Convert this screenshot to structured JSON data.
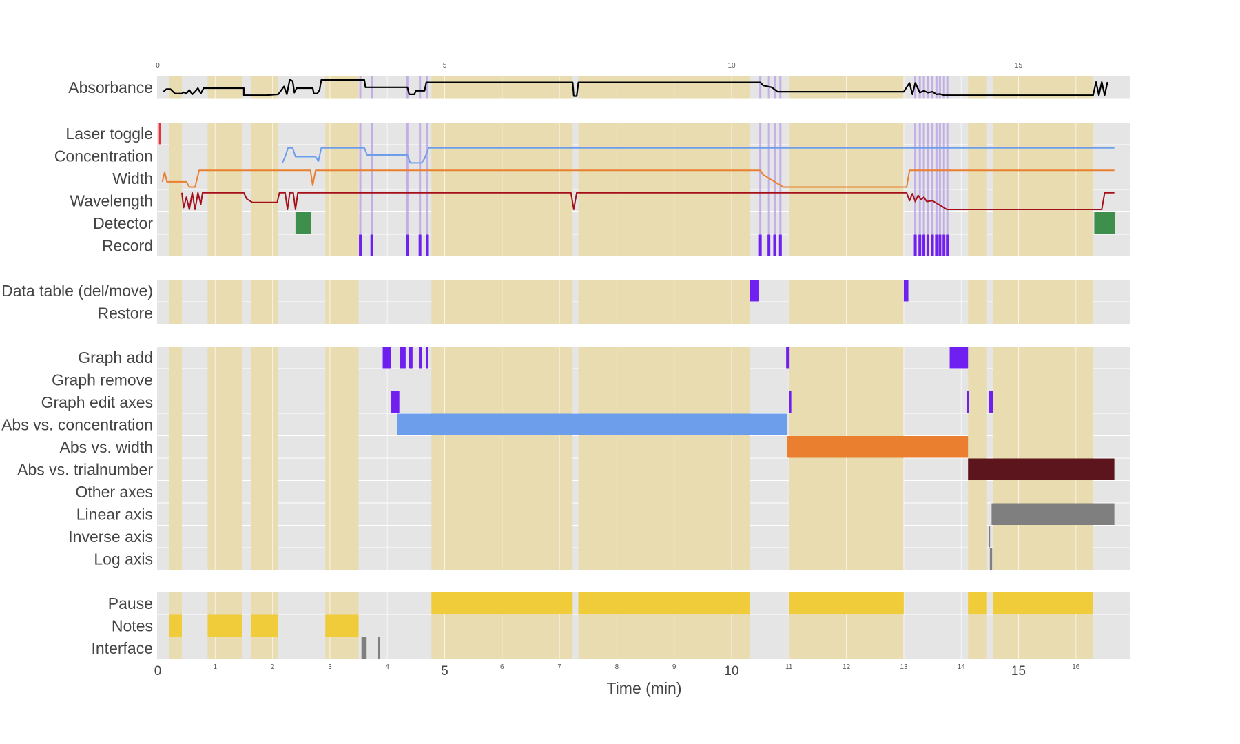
{
  "chart_data": {
    "type": "timeline",
    "xlabel": "Time (min)",
    "xlim": [
      0,
      17
    ],
    "grid": true,
    "top_ticks": [
      "0",
      "5",
      "10",
      "15"
    ],
    "bottom_major_ticks": [
      "0",
      "5",
      "10",
      "15"
    ],
    "bottom_minor_ticks": [
      "1",
      "2",
      "3",
      "4",
      "6",
      "7",
      "8",
      "9",
      "11",
      "12",
      "13",
      "14",
      "16"
    ],
    "colors": {
      "panel_bg": "#e5e5e5",
      "shade": "#e8dcb0",
      "black": "#000000",
      "red": "#e8303a",
      "blue": "#6d9eeb",
      "orange": "#e97f2f",
      "darkred": "#a50e1b",
      "green": "#3e8e4c",
      "purple": "#6f1ff0",
      "lavender": "#b9a1e6",
      "maroon": "#5c141d",
      "gray": "#7f7f7f",
      "yellow": "#f0cb3a"
    },
    "shaded_intervals": [
      [
        0.2,
        0.42
      ],
      [
        0.87,
        1.47
      ],
      [
        1.62,
        2.1
      ],
      [
        2.92,
        3.5
      ],
      [
        4.77,
        7.23
      ],
      [
        7.33,
        10.32
      ],
      [
        11.0,
        13.0
      ],
      [
        14.12,
        14.45
      ],
      [
        14.55,
        16.3
      ]
    ],
    "panels": [
      {
        "id": "absorbance",
        "rows": [
          "Absorbance"
        ]
      },
      {
        "id": "controls",
        "rows": [
          "Laser toggle",
          "Concentration",
          "Width",
          "Wavelength",
          "Detector",
          "Record"
        ]
      },
      {
        "id": "table",
        "rows": [
          "Data table (del/move)",
          "Restore"
        ]
      },
      {
        "id": "graph",
        "rows": [
          "Graph add",
          "Graph remove",
          "Graph edit axes",
          "Abs vs. concentration",
          "Abs vs. width",
          "Abs vs. trialnumber",
          "Other axes",
          "Linear axis",
          "Inverse axis",
          "Log axis"
        ]
      },
      {
        "id": "activity",
        "rows": [
          "Pause",
          "Notes",
          "Interface"
        ]
      }
    ],
    "record_times": [
      3.53,
      3.73,
      4.35,
      4.57,
      4.7,
      10.5,
      10.65,
      10.75,
      10.85,
      13.2,
      13.28,
      13.35,
      13.42,
      13.5,
      13.57,
      13.63,
      13.7,
      13.76
    ],
    "events": [
      {
        "row": "Laser toggle",
        "start": 0.02,
        "end": 0.06,
        "color": "red"
      },
      {
        "row": "Detector",
        "start": 2.4,
        "end": 2.67,
        "color": "green"
      },
      {
        "row": "Detector",
        "start": 16.32,
        "end": 16.68,
        "color": "green"
      },
      {
        "row": "Data table (del/move)",
        "start": 10.32,
        "end": 10.48,
        "color": "purple"
      },
      {
        "row": "Data table (del/move)",
        "start": 13.0,
        "end": 13.08,
        "color": "purple"
      },
      {
        "row": "Graph add",
        "start": 3.92,
        "end": 4.06,
        "color": "purple"
      },
      {
        "row": "Graph add",
        "start": 4.22,
        "end": 4.32,
        "color": "purple"
      },
      {
        "row": "Graph add",
        "start": 4.37,
        "end": 4.44,
        "color": "purple"
      },
      {
        "row": "Graph add",
        "start": 4.55,
        "end": 4.6,
        "color": "purple"
      },
      {
        "row": "Graph add",
        "start": 4.67,
        "end": 4.71,
        "color": "purple"
      },
      {
        "row": "Graph add",
        "start": 10.95,
        "end": 11.01,
        "color": "purple"
      },
      {
        "row": "Graph add",
        "start": 13.8,
        "end": 14.12,
        "color": "purple"
      },
      {
        "row": "Graph edit axes",
        "start": 4.07,
        "end": 4.21,
        "color": "purple"
      },
      {
        "row": "Graph edit axes",
        "start": 11.0,
        "end": 11.04,
        "color": "purple"
      },
      {
        "row": "Graph edit axes",
        "start": 14.1,
        "end": 14.13,
        "color": "purple"
      },
      {
        "row": "Graph edit axes",
        "start": 14.48,
        "end": 14.56,
        "color": "purple"
      },
      {
        "row": "Abs vs. concentration",
        "start": 4.17,
        "end": 10.97,
        "color": "blue"
      },
      {
        "row": "Abs vs. width",
        "start": 10.97,
        "end": 14.12,
        "color": "orange"
      },
      {
        "row": "Abs vs. trialnumber",
        "start": 14.12,
        "end": 16.67,
        "color": "maroon"
      },
      {
        "row": "Linear axis",
        "start": 14.53,
        "end": 16.67,
        "color": "gray"
      },
      {
        "row": "Inverse axis",
        "start": 14.48,
        "end": 14.5,
        "color": "gray"
      },
      {
        "row": "Log axis",
        "start": 14.5,
        "end": 14.54,
        "color": "gray"
      },
      {
        "row": "Pause",
        "start": 4.77,
        "end": 7.23,
        "color": "yellow"
      },
      {
        "row": "Pause",
        "start": 7.33,
        "end": 10.32,
        "color": "yellow"
      },
      {
        "row": "Pause",
        "start": 11.0,
        "end": 13.0,
        "color": "yellow"
      },
      {
        "row": "Pause",
        "start": 14.12,
        "end": 14.45,
        "color": "yellow"
      },
      {
        "row": "Pause",
        "start": 14.55,
        "end": 16.3,
        "color": "yellow"
      },
      {
        "row": "Notes",
        "start": 0.2,
        "end": 0.42,
        "color": "yellow"
      },
      {
        "row": "Notes",
        "start": 0.87,
        "end": 1.47,
        "color": "yellow"
      },
      {
        "row": "Notes",
        "start": 1.62,
        "end": 2.1,
        "color": "yellow"
      },
      {
        "row": "Notes",
        "start": 2.92,
        "end": 3.5,
        "color": "yellow"
      },
      {
        "row": "Interface",
        "start": 3.55,
        "end": 3.64,
        "color": "gray"
      },
      {
        "row": "Interface",
        "start": 3.83,
        "end": 3.87,
        "color": "gray"
      }
    ],
    "lines": [
      {
        "row": "Absorbance",
        "color": "black",
        "points": [
          [
            0.1,
            0.25
          ],
          [
            0.15,
            0.4
          ],
          [
            0.22,
            0.4
          ],
          [
            0.3,
            0.15
          ],
          [
            0.42,
            0.15
          ],
          [
            0.45,
            0.22
          ],
          [
            0.5,
            0.15
          ],
          [
            0.55,
            0.35
          ],
          [
            0.6,
            0.1
          ],
          [
            0.65,
            0.25
          ],
          [
            0.7,
            0.45
          ],
          [
            0.75,
            0.15
          ],
          [
            0.8,
            0.45
          ],
          [
            1.5,
            0.45
          ],
          [
            1.5,
            0.05
          ],
          [
            1.9,
            0.05
          ],
          [
            2.1,
            0.1
          ],
          [
            2.2,
            0.55
          ],
          [
            2.25,
            0.1
          ],
          [
            2.3,
            0.95
          ],
          [
            2.35,
            0.85
          ],
          [
            2.38,
            0.2
          ],
          [
            2.42,
            0.45
          ],
          [
            2.7,
            0.45
          ],
          [
            2.72,
            0.15
          ],
          [
            2.78,
            0.15
          ],
          [
            2.82,
            0.35
          ],
          [
            2.85,
            0.92
          ],
          [
            3.6,
            0.92
          ],
          [
            3.62,
            0.5
          ],
          [
            4.35,
            0.5
          ],
          [
            4.38,
            0.1
          ],
          [
            4.47,
            0.1
          ],
          [
            4.5,
            0.3
          ],
          [
            4.65,
            0.3
          ],
          [
            4.68,
            0.78
          ],
          [
            7.23,
            0.78
          ],
          [
            7.25,
            0.0
          ],
          [
            7.3,
            0.0
          ],
          [
            7.33,
            0.78
          ],
          [
            10.5,
            0.78
          ],
          [
            10.55,
            0.6
          ],
          [
            10.7,
            0.5
          ],
          [
            10.8,
            0.25
          ],
          [
            13.0,
            0.25
          ],
          [
            13.1,
            0.75
          ],
          [
            13.15,
            0.1
          ],
          [
            13.2,
            0.75
          ],
          [
            13.28,
            0.2
          ],
          [
            13.35,
            0.3
          ],
          [
            13.42,
            0.2
          ],
          [
            13.5,
            0.25
          ],
          [
            13.57,
            0.1
          ],
          [
            13.63,
            0.12
          ],
          [
            13.7,
            0.05
          ],
          [
            16.3,
            0.05
          ],
          [
            16.35,
            0.8
          ],
          [
            16.4,
            0.05
          ],
          [
            16.45,
            0.8
          ],
          [
            16.5,
            0.05
          ],
          [
            16.55,
            0.8
          ]
        ]
      },
      {
        "row": "Concentration",
        "color": "blue",
        "points": [
          [
            2.17,
            0.1
          ],
          [
            2.22,
            0.45
          ],
          [
            2.27,
            0.95
          ],
          [
            2.35,
            0.95
          ],
          [
            2.4,
            0.45
          ],
          [
            2.75,
            0.45
          ],
          [
            2.8,
            0.2
          ],
          [
            2.85,
            0.95
          ],
          [
            3.6,
            0.95
          ],
          [
            3.65,
            0.55
          ],
          [
            4.35,
            0.55
          ],
          [
            4.4,
            0.1
          ],
          [
            4.6,
            0.1
          ],
          [
            4.65,
            0.35
          ],
          [
            4.72,
            0.95
          ],
          [
            16.67,
            0.95
          ]
        ]
      },
      {
        "row": "Width",
        "color": "orange",
        "points": [
          [
            0.08,
            0.3
          ],
          [
            0.12,
            0.85
          ],
          [
            0.16,
            0.3
          ],
          [
            0.5,
            0.3
          ],
          [
            0.55,
            0.0
          ],
          [
            0.65,
            0.0
          ],
          [
            0.72,
            0.95
          ],
          [
            2.66,
            0.95
          ],
          [
            2.7,
            0.1
          ],
          [
            2.75,
            0.95
          ],
          [
            10.5,
            0.95
          ],
          [
            10.55,
            0.7
          ],
          [
            10.65,
            0.5
          ],
          [
            10.75,
            0.3
          ],
          [
            10.85,
            0.1
          ],
          [
            10.9,
            0.0
          ],
          [
            13.05,
            0.0
          ],
          [
            13.1,
            0.95
          ],
          [
            16.67,
            0.95
          ]
        ]
      },
      {
        "row": "Wavelength",
        "color": "darkred",
        "points": [
          [
            0.42,
            0.95
          ],
          [
            0.45,
            0.1
          ],
          [
            0.5,
            0.7
          ],
          [
            0.55,
            0.0
          ],
          [
            0.6,
            0.95
          ],
          [
            0.65,
            0.0
          ],
          [
            0.7,
            0.95
          ],
          [
            0.75,
            0.3
          ],
          [
            0.78,
            0.95
          ],
          [
            1.5,
            0.95
          ],
          [
            1.55,
            0.6
          ],
          [
            1.65,
            0.4
          ],
          [
            2.08,
            0.4
          ],
          [
            2.12,
            0.95
          ],
          [
            2.22,
            0.95
          ],
          [
            2.26,
            0.0
          ],
          [
            2.3,
            0.95
          ],
          [
            2.36,
            0.95
          ],
          [
            2.4,
            0.0
          ],
          [
            2.44,
            0.95
          ],
          [
            7.2,
            0.95
          ],
          [
            7.25,
            0.0
          ],
          [
            7.3,
            0.95
          ],
          [
            13.05,
            0.95
          ],
          [
            13.1,
            0.5
          ],
          [
            13.15,
            0.9
          ],
          [
            13.2,
            0.45
          ],
          [
            13.25,
            0.8
          ],
          [
            13.3,
            0.55
          ],
          [
            13.35,
            0.7
          ],
          [
            13.4,
            0.45
          ],
          [
            13.5,
            0.5
          ],
          [
            13.6,
            0.3
          ],
          [
            13.75,
            0.0
          ],
          [
            16.45,
            0.0
          ],
          [
            16.5,
            0.95
          ],
          [
            16.67,
            0.95
          ]
        ]
      }
    ]
  }
}
